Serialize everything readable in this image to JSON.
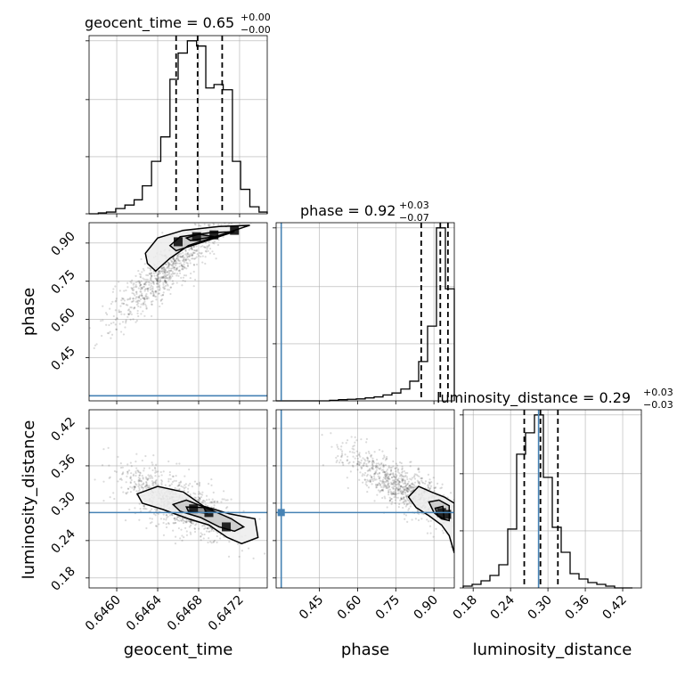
{
  "chart_data": {
    "type": "corner",
    "parameters": [
      "geocent_time",
      "phase",
      "luminosity_distance"
    ],
    "truth_color": "#4682b4",
    "truths": {
      "phase": 0.3,
      "luminosity_distance": 0.285
    },
    "titles": [
      {
        "param": "geocent_time",
        "label": "geocent_time = 0.65",
        "plus": "+0.00",
        "minus": "−0.00"
      },
      {
        "param": "phase",
        "label": "phase = 0.92",
        "plus": "+0.03",
        "minus": "−0.07"
      },
      {
        "param": "luminosity_distance",
        "label": "luminosity_distance = 0.29",
        "plus": "+0.03",
        "minus": "−0.03"
      }
    ],
    "axes": {
      "geocent_time": {
        "range": [
          0.64573,
          0.64747
        ],
        "ticks": [
          0.646,
          0.6464,
          0.6468,
          0.6472
        ],
        "tick_labels": [
          "0.6460",
          "0.6464",
          "0.6468",
          "0.6472"
        ],
        "xlabel": "geocent_time"
      },
      "phase": {
        "range": [
          0.28,
          0.98
        ],
        "ticks": [
          0.45,
          0.6,
          0.75,
          0.9
        ],
        "tick_labels": [
          "0.45",
          "0.60",
          "0.75",
          "0.90"
        ],
        "xlabel": "phase",
        "ylabel": "phase"
      },
      "luminosity_distance": {
        "range": [
          0.164,
          0.45
        ],
        "ticks": [
          0.18,
          0.24,
          0.3,
          0.36,
          0.42
        ],
        "tick_labels": [
          "0.18",
          "0.24",
          "0.30",
          "0.36",
          "0.42"
        ],
        "xlabel": "luminosity_distance",
        "ylabel": "luminosity_distance"
      }
    },
    "histograms": {
      "geocent_time": {
        "bins": [
          0.64573,
          0.64582,
          0.6459,
          0.64599,
          0.64608,
          0.64617,
          0.64625,
          0.64634,
          0.64643,
          0.64652,
          0.6466,
          0.64669,
          0.64678,
          0.64687,
          0.64695,
          0.64704,
          0.64713,
          0.64721,
          0.6473,
          0.64739,
          0.64747
        ],
        "counts": [
          0,
          0.5,
          1,
          3,
          5,
          8,
          16,
          30,
          44,
          77,
          92,
          99,
          96,
          72,
          74,
          71,
          30,
          14,
          4,
          1
        ],
        "quantiles": [
          0.64658,
          0.64679,
          0.64703
        ]
      },
      "phase": {
        "bins": [
          0.28,
          0.315,
          0.35,
          0.385,
          0.42,
          0.455,
          0.49,
          0.525,
          0.56,
          0.595,
          0.63,
          0.665,
          0.7,
          0.735,
          0.77,
          0.805,
          0.84,
          0.875,
          0.91,
          0.945,
          0.98
        ],
        "counts": [
          0,
          0,
          0,
          0,
          0,
          0,
          0.3,
          0.6,
          0.8,
          1,
          1.5,
          2,
          3,
          4,
          6,
          10,
          20,
          38,
          88,
          57
        ],
        "quantiles": [
          0.85,
          0.925,
          0.955
        ]
      },
      "luminosity_distance": {
        "bins": [
          0.164,
          0.1783,
          0.1926,
          0.2069,
          0.2212,
          0.2355,
          0.2498,
          0.2641,
          0.2784,
          0.2927,
          0.307,
          0.3213,
          0.3356,
          0.3499,
          0.3642,
          0.3785,
          0.3928,
          0.4071,
          0.4214,
          0.4357
        ],
        "counts": [
          1,
          2,
          4,
          7,
          13,
          33,
          75,
          87,
          97,
          62,
          34,
          20,
          8,
          5,
          3,
          2,
          1,
          0,
          0
        ],
        "quantiles": [
          0.262,
          0.288,
          0.316
        ]
      }
    },
    "contours": [
      {
        "x": "geocent_time",
        "y": "phase",
        "levels": [
          [
            [
              0.64638,
              0.79
            ],
            [
              0.64652,
              0.84
            ],
            [
              0.6467,
              0.89
            ],
            [
              0.647,
              0.93
            ],
            [
              0.6473,
              0.97
            ],
            [
              0.647,
              0.965
            ],
            [
              0.64665,
              0.95
            ],
            [
              0.6464,
              0.92
            ],
            [
              0.64628,
              0.86
            ],
            [
              0.6463,
              0.82
            ]
          ],
          [
            [
              0.64658,
              0.87
            ],
            [
              0.64685,
              0.905
            ],
            [
              0.64715,
              0.945
            ],
            [
              0.6469,
              0.94
            ],
            [
              0.64662,
              0.925
            ],
            [
              0.64652,
              0.89
            ]
          ],
          [
            [
              0.64672,
              0.91
            ],
            [
              0.64695,
              0.925
            ],
            [
              0.6468,
              0.935
            ],
            [
              0.64668,
              0.92
            ]
          ]
        ],
        "dense": [
          [
            0.64678,
            0.925
          ],
          [
            0.64695,
            0.932
          ],
          [
            0.6466,
            0.905
          ],
          [
            0.64715,
            0.95
          ]
        ]
      },
      {
        "x": "geocent_time",
        "y": "luminosity_distance",
        "levels": [
          [
            [
              0.6462,
              0.315
            ],
            [
              0.6464,
              0.327
            ],
            [
              0.64665,
              0.318
            ],
            [
              0.64685,
              0.295
            ],
            [
              0.6471,
              0.283
            ],
            [
              0.64735,
              0.275
            ],
            [
              0.64738,
              0.245
            ],
            [
              0.64722,
              0.235
            ],
            [
              0.64708,
              0.245
            ],
            [
              0.6469,
              0.265
            ],
            [
              0.6467,
              0.275
            ],
            [
              0.64645,
              0.29
            ],
            [
              0.64625,
              0.3
            ]
          ],
          [
            [
              0.64655,
              0.298
            ],
            [
              0.64668,
              0.305
            ],
            [
              0.64688,
              0.292
            ],
            [
              0.64712,
              0.275
            ],
            [
              0.64724,
              0.262
            ],
            [
              0.64715,
              0.255
            ],
            [
              0.647,
              0.262
            ],
            [
              0.64682,
              0.277
            ],
            [
              0.64662,
              0.287
            ]
          ],
          [
            [
              0.64668,
              0.294
            ],
            [
              0.64685,
              0.293
            ],
            [
              0.64688,
              0.284
            ],
            [
              0.6467,
              0.287
            ]
          ]
        ],
        "dense": [
          [
            0.64675,
            0.291
          ],
          [
            0.64707,
            0.262
          ],
          [
            0.6469,
            0.285
          ]
        ]
      },
      {
        "x": "phase",
        "y": "luminosity_distance",
        "levels": [
          [
            [
              0.8,
              0.31
            ],
            [
              0.84,
              0.327
            ],
            [
              0.89,
              0.318
            ],
            [
              0.94,
              0.31
            ],
            [
              0.98,
              0.3
            ],
            [
              0.98,
              0.22
            ],
            [
              0.96,
              0.248
            ],
            [
              0.93,
              0.265
            ],
            [
              0.88,
              0.28
            ],
            [
              0.83,
              0.293
            ]
          ],
          [
            [
              0.88,
              0.302
            ],
            [
              0.92,
              0.305
            ],
            [
              0.96,
              0.296
            ],
            [
              0.96,
              0.272
            ],
            [
              0.93,
              0.275
            ],
            [
              0.9,
              0.285
            ]
          ],
          [
            [
              0.905,
              0.292
            ],
            [
              0.935,
              0.295
            ],
            [
              0.94,
              0.275
            ],
            [
              0.915,
              0.28
            ]
          ]
        ],
        "dense": [
          [
            0.93,
            0.285
          ],
          [
            0.95,
            0.282
          ]
        ]
      }
    ],
    "scatter_trends": [
      {
        "x": "geocent_time",
        "y": "phase",
        "slope": 346.0,
        "center": [
          0.6465,
          0.8
        ],
        "spread": [
          0.00028,
          0.05
        ]
      },
      {
        "x": "geocent_time",
        "y": "luminosity_distance",
        "slope": -70.0,
        "center": [
          0.6466,
          0.3
        ],
        "spread": [
          0.00028,
          0.022
        ]
      },
      {
        "x": "phase",
        "y": "luminosity_distance",
        "slope": -0.22,
        "center": [
          0.78,
          0.325
        ],
        "spread": [
          0.12,
          0.018
        ]
      }
    ]
  }
}
